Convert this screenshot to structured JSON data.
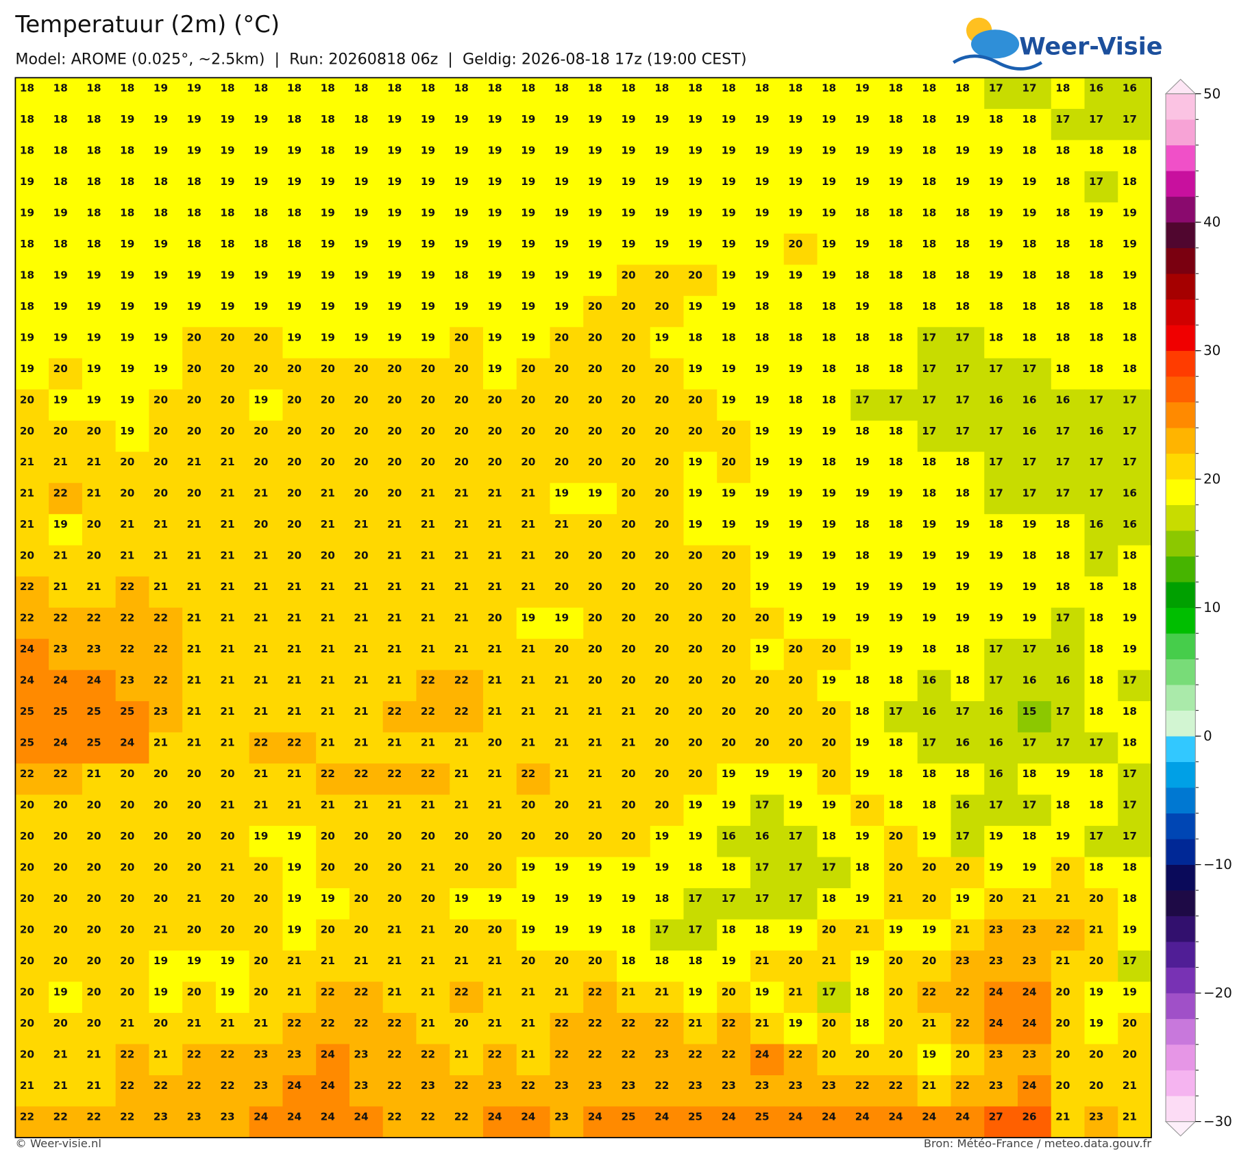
{
  "header": {
    "title": "Temperatuur (2m) (°C)",
    "subtitle": "Model: AROME (0.025°, ~2.5km)  |  Run: 20260818 06z  |  Geldig: 2026-08-18 17z (19:00 CEST)",
    "logo": "Weer-Visie"
  },
  "map": {
    "grid": [
      [
        18,
        18,
        18,
        18,
        19,
        19,
        18,
        18,
        18,
        18,
        18,
        18,
        18,
        18,
        18,
        18,
        18,
        18,
        18,
        18,
        18,
        18,
        18,
        18,
        18,
        19,
        18,
        18,
        18,
        17,
        17,
        18,
        16,
        16
      ],
      [
        18,
        18,
        18,
        19,
        19,
        19,
        19,
        19,
        18,
        18,
        18,
        19,
        19,
        19,
        19,
        19,
        19,
        19,
        19,
        19,
        19,
        19,
        19,
        19,
        19,
        19,
        18,
        18,
        19,
        18,
        18,
        17,
        17,
        17
      ],
      [
        18,
        18,
        18,
        18,
        19,
        19,
        19,
        19,
        19,
        18,
        19,
        19,
        19,
        19,
        19,
        19,
        19,
        19,
        19,
        19,
        19,
        19,
        19,
        19,
        19,
        19,
        19,
        18,
        19,
        19,
        18,
        18,
        18,
        18
      ],
      [
        19,
        18,
        18,
        18,
        18,
        18,
        19,
        19,
        19,
        19,
        19,
        19,
        19,
        19,
        19,
        19,
        19,
        19,
        19,
        19,
        19,
        19,
        19,
        19,
        19,
        19,
        19,
        18,
        19,
        19,
        19,
        18,
        17,
        18
      ],
      [
        19,
        19,
        18,
        18,
        18,
        18,
        18,
        18,
        18,
        19,
        19,
        19,
        19,
        19,
        19,
        19,
        19,
        19,
        19,
        19,
        19,
        19,
        19,
        19,
        19,
        18,
        18,
        18,
        18,
        19,
        19,
        18,
        19,
        19
      ],
      [
        18,
        18,
        18,
        19,
        19,
        18,
        18,
        18,
        18,
        19,
        19,
        19,
        19,
        19,
        19,
        19,
        19,
        19,
        19,
        19,
        19,
        19,
        19,
        20,
        19,
        19,
        18,
        18,
        18,
        19,
        18,
        18,
        18,
        19
      ],
      [
        18,
        19,
        19,
        19,
        19,
        19,
        19,
        19,
        19,
        19,
        19,
        19,
        19,
        18,
        19,
        19,
        19,
        19,
        20,
        20,
        20,
        19,
        19,
        19,
        19,
        18,
        18,
        18,
        18,
        19,
        18,
        18,
        18,
        19
      ],
      [
        18,
        19,
        19,
        19,
        19,
        19,
        19,
        19,
        19,
        19,
        19,
        19,
        19,
        19,
        19,
        19,
        19,
        20,
        20,
        20,
        19,
        19,
        18,
        18,
        18,
        19,
        18,
        18,
        18,
        18,
        18,
        18,
        18,
        18
      ],
      [
        19,
        19,
        19,
        19,
        19,
        20,
        20,
        20,
        19,
        19,
        19,
        19,
        19,
        20,
        19,
        19,
        20,
        20,
        20,
        19,
        18,
        18,
        18,
        18,
        18,
        18,
        18,
        17,
        17,
        18,
        18,
        18,
        18,
        18
      ],
      [
        19,
        20,
        19,
        19,
        19,
        20,
        20,
        20,
        20,
        20,
        20,
        20,
        20,
        20,
        19,
        20,
        20,
        20,
        20,
        20,
        19,
        19,
        19,
        19,
        18,
        18,
        18,
        17,
        17,
        17,
        17,
        18,
        18,
        18
      ],
      [
        20,
        19,
        19,
        19,
        20,
        20,
        20,
        19,
        20,
        20,
        20,
        20,
        20,
        20,
        20,
        20,
        20,
        20,
        20,
        20,
        20,
        19,
        19,
        18,
        18,
        17,
        17,
        17,
        17,
        16,
        16,
        16,
        17,
        17
      ],
      [
        20,
        20,
        20,
        19,
        20,
        20,
        20,
        20,
        20,
        20,
        20,
        20,
        20,
        20,
        20,
        20,
        20,
        20,
        20,
        20,
        20,
        20,
        19,
        19,
        19,
        18,
        18,
        17,
        17,
        17,
        16,
        17,
        16,
        17
      ],
      [
        21,
        21,
        21,
        20,
        20,
        21,
        21,
        20,
        20,
        20,
        20,
        20,
        20,
        20,
        20,
        20,
        20,
        20,
        20,
        20,
        19,
        20,
        19,
        19,
        18,
        19,
        18,
        18,
        18,
        17,
        17,
        17,
        17,
        17
      ],
      [
        21,
        22,
        21,
        20,
        20,
        20,
        21,
        21,
        20,
        21,
        20,
        20,
        21,
        21,
        21,
        21,
        19,
        19,
        20,
        20,
        19,
        19,
        19,
        19,
        19,
        19,
        19,
        18,
        18,
        17,
        17,
        17,
        17,
        16
      ],
      [
        21,
        19,
        20,
        21,
        21,
        21,
        21,
        20,
        20,
        21,
        21,
        21,
        21,
        21,
        21,
        21,
        21,
        20,
        20,
        20,
        19,
        19,
        19,
        19,
        19,
        18,
        18,
        19,
        19,
        18,
        19,
        18,
        16,
        16
      ],
      [
        20,
        21,
        20,
        21,
        21,
        21,
        21,
        21,
        20,
        20,
        20,
        21,
        21,
        21,
        21,
        21,
        20,
        20,
        20,
        20,
        20,
        20,
        19,
        19,
        19,
        18,
        19,
        19,
        19,
        19,
        18,
        18,
        17,
        18
      ],
      [
        22,
        21,
        21,
        22,
        21,
        21,
        21,
        21,
        21,
        21,
        21,
        21,
        21,
        21,
        21,
        21,
        20,
        20,
        20,
        20,
        20,
        20,
        19,
        19,
        19,
        19,
        19,
        19,
        19,
        19,
        19,
        18,
        18,
        18
      ],
      [
        22,
        22,
        22,
        22,
        22,
        21,
        21,
        21,
        21,
        21,
        21,
        21,
        21,
        21,
        20,
        19,
        19,
        20,
        20,
        20,
        20,
        20,
        20,
        19,
        19,
        19,
        19,
        19,
        19,
        19,
        19,
        17,
        18,
        19
      ],
      [
        24,
        23,
        23,
        22,
        22,
        21,
        21,
        21,
        21,
        21,
        21,
        21,
        21,
        21,
        21,
        21,
        20,
        20,
        20,
        20,
        20,
        20,
        19,
        20,
        20,
        19,
        19,
        18,
        18,
        17,
        17,
        16,
        18,
        19
      ],
      [
        24,
        24,
        24,
        23,
        22,
        21,
        21,
        21,
        21,
        21,
        21,
        21,
        22,
        22,
        21,
        21,
        21,
        20,
        20,
        20,
        20,
        20,
        20,
        20,
        19,
        18,
        18,
        16,
        18,
        17,
        16,
        16,
        18,
        17
      ],
      [
        25,
        25,
        25,
        25,
        23,
        21,
        21,
        21,
        21,
        21,
        21,
        22,
        22,
        22,
        21,
        21,
        21,
        21,
        21,
        20,
        20,
        20,
        20,
        20,
        20,
        18,
        17,
        16,
        17,
        16,
        15,
        17,
        18,
        18
      ],
      [
        25,
        24,
        25,
        24,
        21,
        21,
        21,
        22,
        22,
        21,
        21,
        21,
        21,
        21,
        20,
        21,
        21,
        21,
        21,
        20,
        20,
        20,
        20,
        20,
        20,
        19,
        18,
        17,
        16,
        16,
        17,
        17,
        17,
        18
      ],
      [
        22,
        22,
        21,
        20,
        20,
        20,
        20,
        21,
        21,
        22,
        22,
        22,
        22,
        21,
        21,
        22,
        21,
        21,
        20,
        20,
        20,
        19,
        19,
        19,
        20,
        19,
        18,
        18,
        18,
        16,
        18,
        19,
        18,
        17
      ],
      [
        20,
        20,
        20,
        20,
        20,
        20,
        21,
        21,
        21,
        21,
        21,
        21,
        21,
        21,
        21,
        20,
        20,
        21,
        20,
        20,
        19,
        19,
        17,
        19,
        19,
        20,
        18,
        18,
        16,
        17,
        17,
        18,
        18,
        17
      ],
      [
        20,
        20,
        20,
        20,
        20,
        20,
        20,
        19,
        19,
        20,
        20,
        20,
        20,
        20,
        20,
        20,
        20,
        20,
        20,
        19,
        19,
        16,
        16,
        17,
        18,
        19,
        20,
        19,
        17,
        19,
        18,
        19,
        17,
        17
      ],
      [
        20,
        20,
        20,
        20,
        20,
        20,
        21,
        20,
        19,
        20,
        20,
        20,
        21,
        20,
        20,
        19,
        19,
        19,
        19,
        19,
        18,
        18,
        17,
        17,
        17,
        18,
        20,
        20,
        20,
        19,
        19,
        20,
        18,
        18
      ],
      [
        20,
        20,
        20,
        20,
        20,
        21,
        20,
        20,
        19,
        19,
        20,
        20,
        20,
        19,
        19,
        19,
        19,
        19,
        19,
        18,
        17,
        17,
        17,
        17,
        18,
        19,
        21,
        20,
        19,
        20,
        21,
        21,
        20,
        18
      ],
      [
        20,
        20,
        20,
        20,
        21,
        20,
        20,
        20,
        19,
        20,
        20,
        21,
        21,
        20,
        20,
        19,
        19,
        19,
        18,
        17,
        17,
        18,
        18,
        19,
        20,
        21,
        19,
        19,
        21,
        23,
        23,
        22,
        21,
        19
      ],
      [
        20,
        20,
        20,
        20,
        19,
        19,
        19,
        20,
        21,
        21,
        21,
        21,
        21,
        21,
        21,
        20,
        20,
        20,
        18,
        18,
        18,
        19,
        21,
        20,
        21,
        19,
        20,
        20,
        23,
        23,
        23,
        21,
        20,
        17
      ],
      [
        20,
        19,
        20,
        20,
        19,
        20,
        19,
        20,
        21,
        22,
        22,
        21,
        21,
        22,
        21,
        21,
        21,
        22,
        21,
        21,
        19,
        20,
        19,
        21,
        17,
        18,
        20,
        22,
        22,
        24,
        24,
        20,
        19,
        19
      ],
      [
        20,
        20,
        20,
        21,
        20,
        21,
        21,
        21,
        22,
        22,
        22,
        22,
        21,
        20,
        21,
        21,
        22,
        22,
        22,
        22,
        21,
        22,
        21,
        19,
        20,
        18,
        20,
        21,
        22,
        24,
        24,
        20,
        19,
        20
      ],
      [
        20,
        21,
        21,
        22,
        21,
        22,
        22,
        23,
        23,
        24,
        23,
        22,
        22,
        21,
        22,
        21,
        22,
        22,
        22,
        23,
        22,
        22,
        24,
        22,
        20,
        20,
        20,
        19,
        20,
        23,
        23,
        20,
        20,
        20
      ],
      [
        21,
        21,
        21,
        22,
        22,
        22,
        22,
        23,
        24,
        24,
        23,
        22,
        23,
        22,
        23,
        22,
        23,
        23,
        23,
        22,
        23,
        23,
        23,
        23,
        23,
        22,
        22,
        21,
        22,
        23,
        24,
        20,
        20,
        21
      ],
      [
        22,
        22,
        22,
        22,
        23,
        23,
        23,
        24,
        24,
        24,
        24,
        22,
        22,
        22,
        24,
        24,
        23,
        24,
        25,
        24,
        25,
        24,
        25,
        24,
        24,
        24,
        24,
        24,
        24,
        27,
        26,
        21,
        23,
        21
      ]
    ]
  },
  "colorbar": {
    "lim": [
      -30,
      50
    ],
    "colors": [
      "#fcdcf5",
      "#f5b4f0",
      "#e696e6",
      "#c878dc",
      "#a050c8",
      "#7832b4",
      "#501e96",
      "#32106e",
      "#1e0a46",
      "#0a0a5a",
      "#002896",
      "#0046b4",
      "#0078d2",
      "#00a0e6",
      "#32c8ff",
      "#d2f5d2",
      "#aaeaaa",
      "#78dc78",
      "#46cd4b",
      "#00be00",
      "#00a000",
      "#46b400",
      "#8cc800",
      "#c8dc00",
      "#ffff00",
      "#ffd800",
      "#ffb400",
      "#ff8a00",
      "#ff6000",
      "#ff3c00",
      "#f00000",
      "#d00000",
      "#a50000",
      "#7a0010",
      "#50062f",
      "#8a0a6e",
      "#c8109e",
      "#f050c8",
      "#f7a3d6",
      "#fbc3e3"
    ],
    "ticks": [
      50,
      40,
      30,
      20,
      10,
      0,
      {
        "value": -10,
        "label": "−10"
      },
      {
        "value": -20,
        "label": "−20"
      },
      {
        "value": -30,
        "label": "−30"
      }
    ]
  },
  "footer": {
    "left": "© Weer-visie.nl",
    "right": "Bron: Météo-France / meteo.data.gouv.fr"
  }
}
